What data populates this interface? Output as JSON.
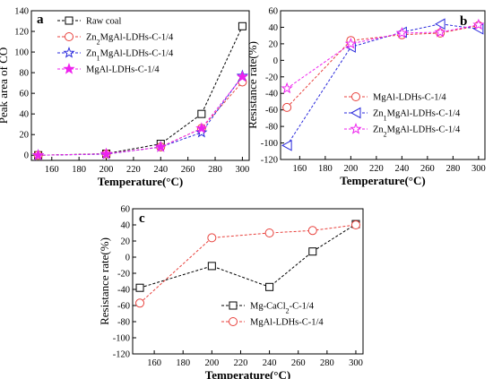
{
  "chart_data": [
    {
      "panel": "a",
      "type": "line",
      "xlabel": "Temperature(°C)",
      "ylabel": "Peak area of CO",
      "xlim": [
        145,
        305
      ],
      "ylim": [
        -5,
        140
      ],
      "xticks": [
        160,
        180,
        200,
        220,
        240,
        260,
        280,
        300
      ],
      "yticks": [
        0,
        20,
        40,
        60,
        80,
        100,
        120,
        140
      ],
      "legend_position": "top-left",
      "series": [
        {
          "name": "Raw coal",
          "color": "#000000",
          "marker": "square",
          "x": [
            150,
            200,
            240,
            270,
            300
          ],
          "y": [
            0,
            1.5,
            11,
            40,
            125
          ]
        },
        {
          "name": "Zn₂MgAl-LDHs-C-1/4",
          "color": "#e8413c",
          "marker": "circle",
          "x": [
            150,
            200,
            240,
            270,
            300
          ],
          "y": [
            0,
            1.2,
            8,
            26,
            71
          ]
        },
        {
          "name": "Zn₁MgAl-LDHs-C-1/4",
          "color": "#2a2adc",
          "marker": "star",
          "x": [
            150,
            200,
            240,
            270,
            300
          ],
          "y": [
            0,
            1.0,
            8,
            22,
            77
          ]
        },
        {
          "name": "MgAl-LDHs-C-1/4",
          "color": "#ee22ee",
          "marker": "star-filled",
          "x": [
            150,
            200,
            240,
            270,
            300
          ],
          "y": [
            0,
            1.3,
            8,
            26,
            76
          ]
        }
      ]
    },
    {
      "panel": "b",
      "type": "line",
      "xlabel": "Temperature(°C)",
      "ylabel": "Resistance rate(%)",
      "xlim": [
        145,
        305
      ],
      "ylim": [
        -120,
        60
      ],
      "xticks": [
        160,
        180,
        200,
        220,
        240,
        260,
        280,
        300
      ],
      "yticks": [
        -120,
        -100,
        -80,
        -60,
        -40,
        -20,
        0,
        20,
        40,
        60
      ],
      "legend_position": "lower-right",
      "series": [
        {
          "name": "MgAl-LDHs-C-1/4",
          "color": "#e8413c",
          "marker": "circle",
          "x": [
            150,
            200,
            240,
            270,
            300
          ],
          "y": [
            -57,
            24,
            31,
            33,
            42
          ]
        },
        {
          "name": "Zn₁MgAl-LDHs-C-1/4",
          "color": "#2a2adc",
          "marker": "triangle-left",
          "x": [
            150,
            200,
            240,
            270,
            300
          ],
          "y": [
            -103,
            16,
            34,
            44,
            38
          ]
        },
        {
          "name": "Zn₂MgAl-LDHs-C-1/4",
          "color": "#ee22ee",
          "marker": "star",
          "x": [
            150,
            200,
            240,
            270,
            300
          ],
          "y": [
            -34,
            20,
            33,
            34,
            43
          ]
        }
      ]
    },
    {
      "panel": "c",
      "type": "line",
      "xlabel": "Temperature(°C)",
      "ylabel": "Resistance rate(%)",
      "xlim": [
        145,
        305
      ],
      "ylim": [
        -120,
        60
      ],
      "xticks": [
        160,
        180,
        200,
        220,
        240,
        260,
        280,
        300
      ],
      "yticks": [
        -120,
        -100,
        -80,
        -60,
        -40,
        -20,
        0,
        20,
        40,
        60
      ],
      "legend_position": "lower-right",
      "series": [
        {
          "name": "Mg-CaCl₂-C-1/4",
          "color": "#000000",
          "marker": "square",
          "x": [
            150,
            200,
            240,
            270,
            300
          ],
          "y": [
            -38,
            -11,
            -37,
            7,
            41
          ]
        },
        {
          "name": "MgAl-LDHs-C-1/4",
          "color": "#e8413c",
          "marker": "circle",
          "x": [
            150,
            200,
            240,
            270,
            300
          ],
          "y": [
            -57,
            24,
            30,
            33,
            40
          ]
        }
      ]
    }
  ]
}
